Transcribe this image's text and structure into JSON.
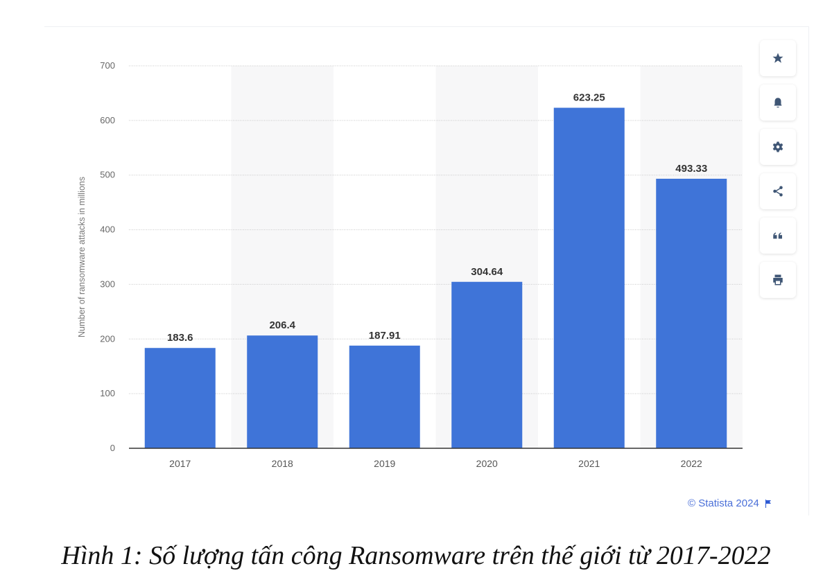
{
  "chart_data": {
    "type": "bar",
    "categories": [
      "2017",
      "2018",
      "2019",
      "2020",
      "2021",
      "2022"
    ],
    "values": [
      183.6,
      206.4,
      187.91,
      304.64,
      623.25,
      493.33
    ],
    "value_labels": [
      "183.6",
      "206.4",
      "187.91",
      "304.64",
      "623.25",
      "493.33"
    ],
    "title": "",
    "xlabel": "",
    "ylabel": "Number of ransomware attacks in millions",
    "ylim": [
      0,
      700
    ],
    "yticks": [
      0,
      100,
      200,
      300,
      400,
      500,
      600,
      700
    ],
    "grid": true,
    "bar_color": "#3f74d8"
  },
  "toolbar": {
    "icons": [
      "star-icon",
      "bell-icon",
      "gear-icon",
      "share-icon",
      "quote-icon",
      "print-icon"
    ]
  },
  "credit": "© Statista 2024",
  "caption": "Hình 1: Số lượng tấn công Ransomware trên thế giới từ 2017-2022"
}
